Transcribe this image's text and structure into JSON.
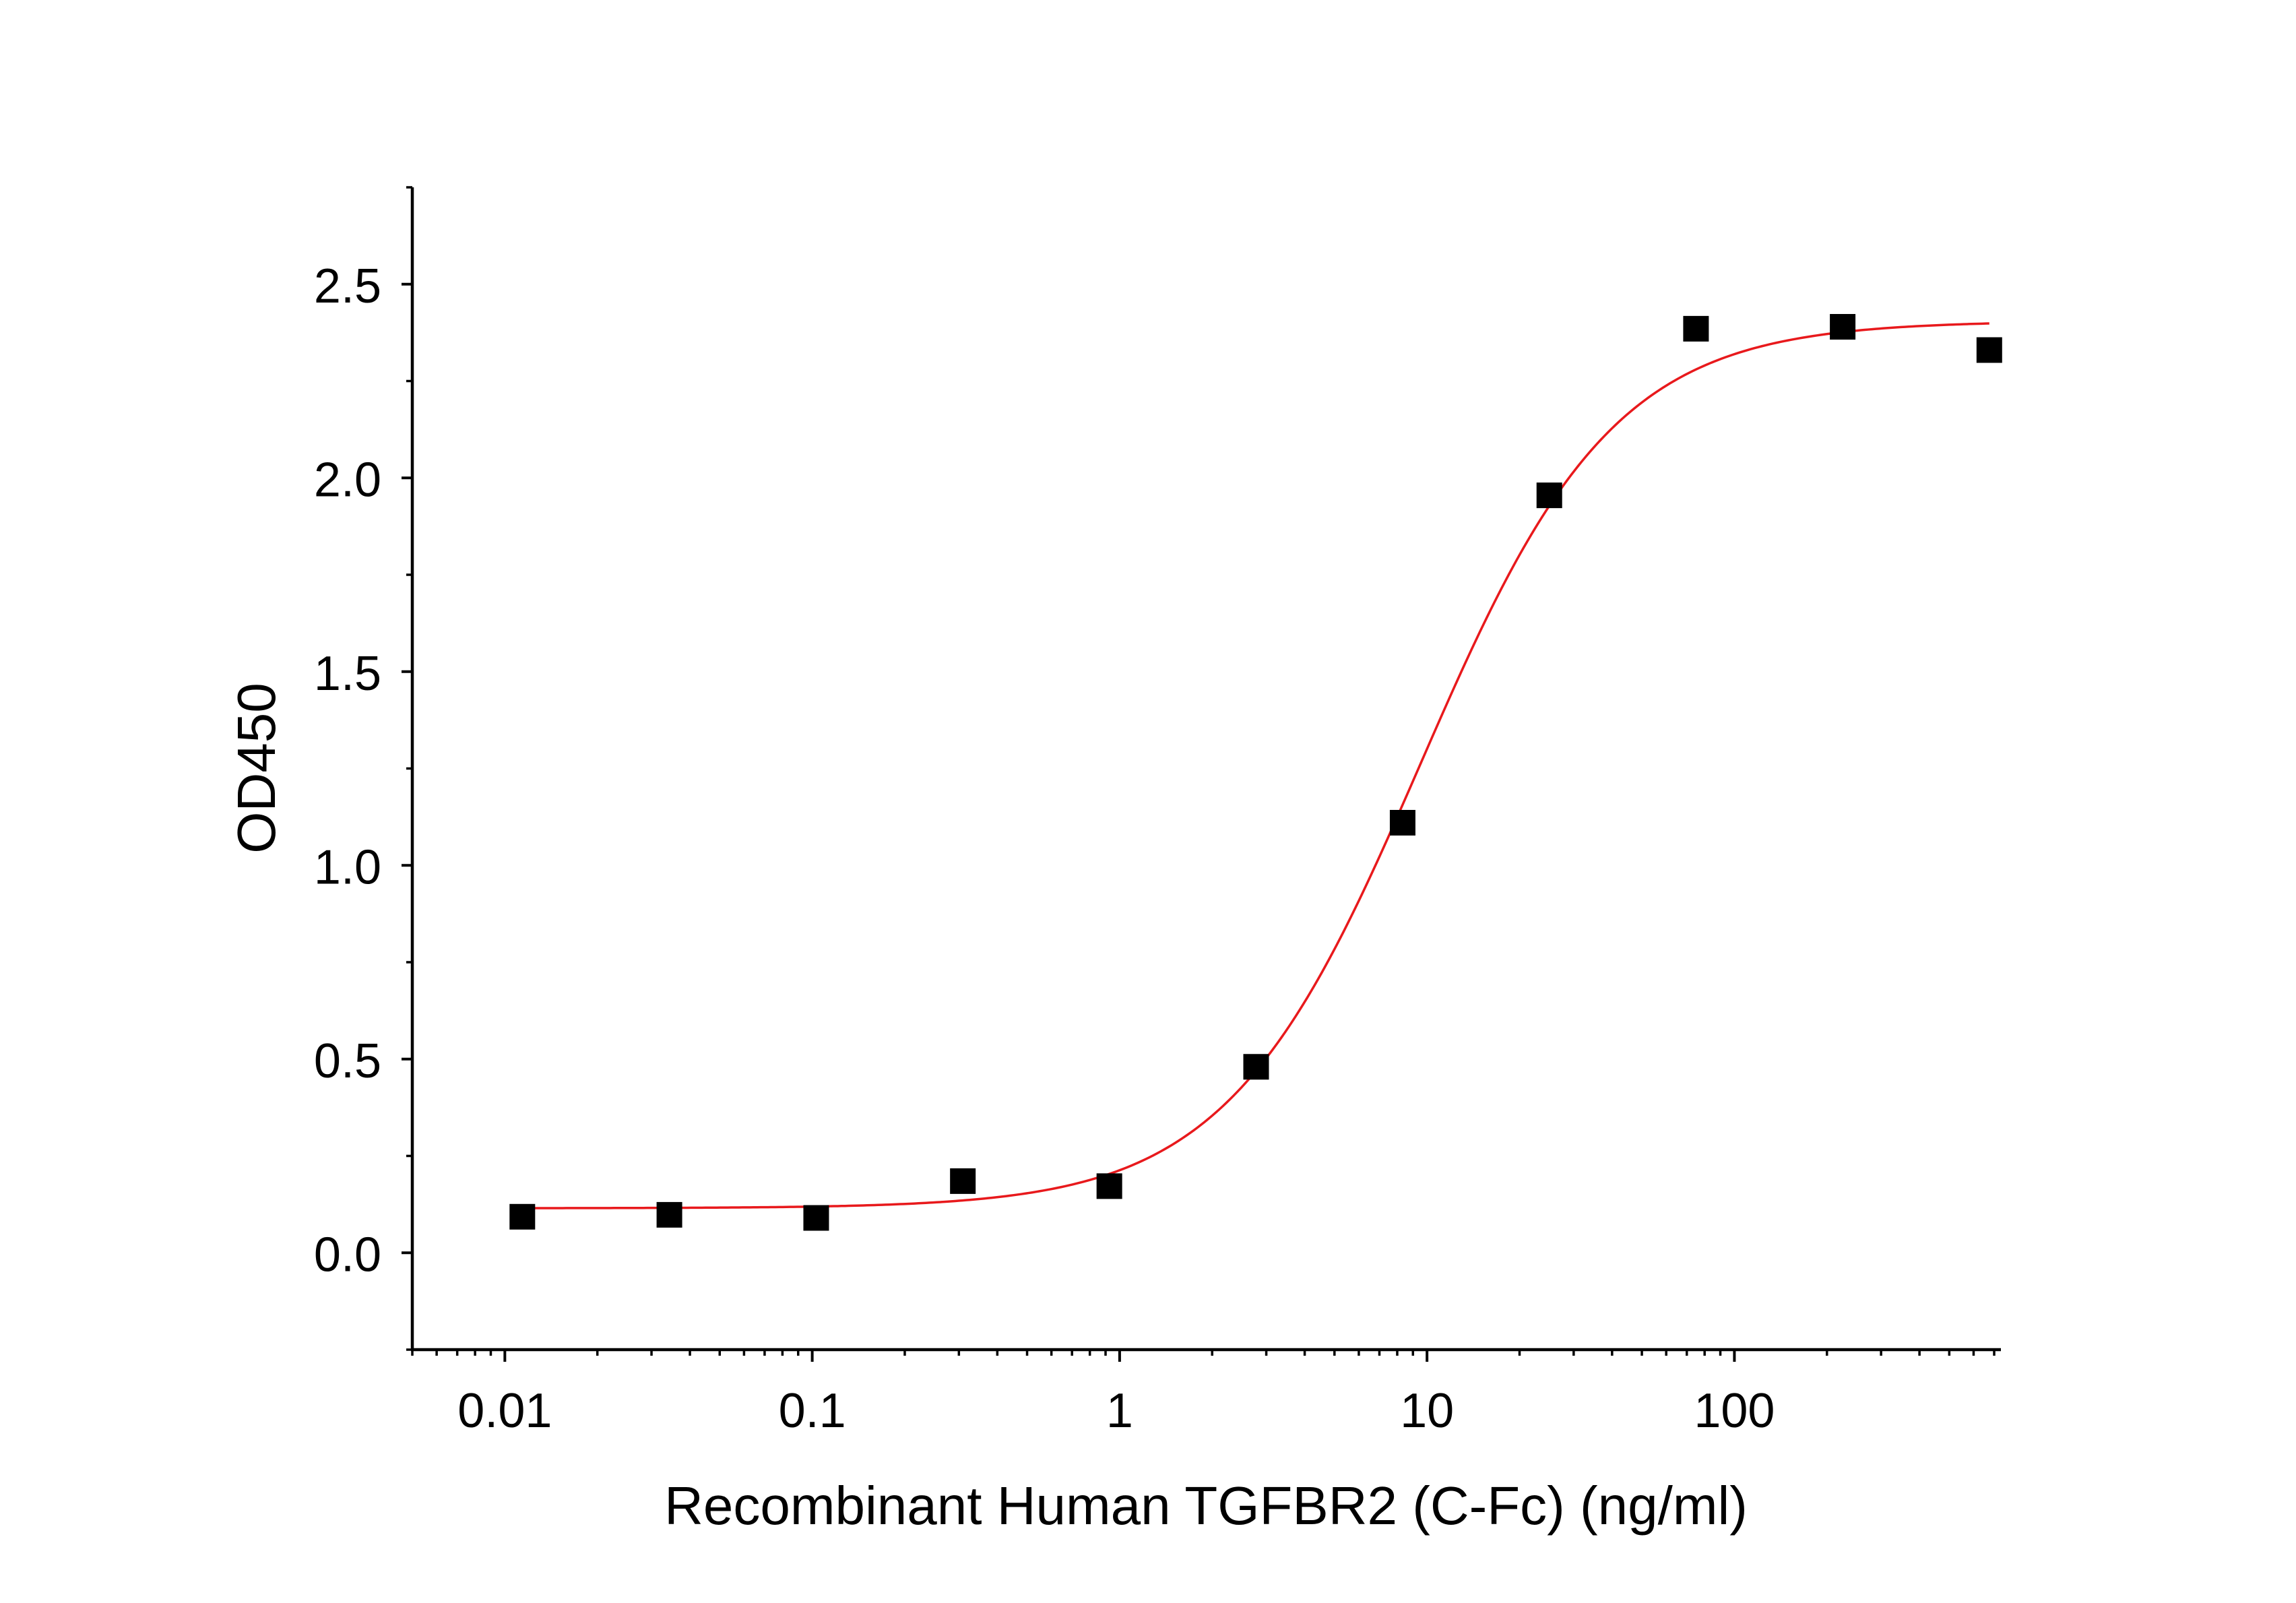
{
  "chart_data": {
    "type": "scatter",
    "title": "",
    "xlabel": "Recombinant Human TGFBR2 (C-Fc) (ng/ml)",
    "ylabel": "OD450",
    "x_scale": "log",
    "xlim": [
      0.005,
      700
    ],
    "ylim": [
      -0.25,
      2.75
    ],
    "x_ticks": [
      0.01,
      0.1,
      1,
      10,
      100
    ],
    "x_tick_labels": [
      "0.01",
      "0.1",
      "1",
      "10",
      "100"
    ],
    "y_ticks": [
      0.0,
      0.5,
      1.0,
      1.5,
      2.0,
      2.5
    ],
    "y_tick_labels": [
      "0.0",
      "0.5",
      "1.0",
      "1.5",
      "2.0",
      "2.5"
    ],
    "grid": false,
    "legend": "none",
    "series": [
      {
        "type": "scatter",
        "marker": "square",
        "color": "#000000",
        "x": [
          0.0114,
          0.0343,
          0.103,
          0.309,
          0.926,
          2.78,
          8.33,
          25.0,
          75.0,
          225.0,
          675.0
        ],
        "y": [
          0.093,
          0.098,
          0.09,
          0.185,
          0.172,
          0.48,
          1.11,
          1.955,
          2.385,
          2.39,
          2.33
        ]
      },
      {
        "type": "line",
        "color": "#e8191c",
        "fit": "4PL",
        "params": {
          "bottom": 0.115,
          "top": 2.405,
          "ec50": 9.5,
          "hill": 1.38
        },
        "x_range": [
          0.0114,
          675.0
        ]
      }
    ]
  }
}
